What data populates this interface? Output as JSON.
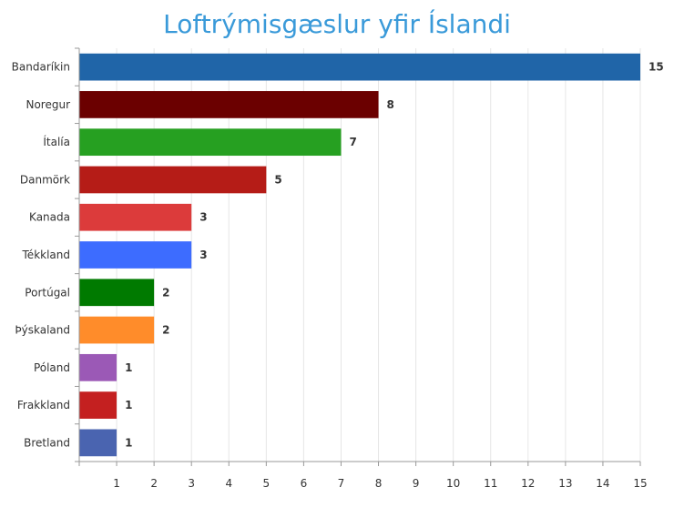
{
  "chart_data": {
    "type": "bar",
    "orientation": "horizontal",
    "title": "Loftrýmisgæslur yfir Íslandi",
    "xlabel": "",
    "ylabel": "",
    "categories": [
      "Bandaríkin",
      "Noregur",
      "Ítalía",
      "Danmörk",
      "Kanada",
      "Tékkland",
      "Portúgal",
      "Þýskaland",
      "Póland",
      "Frakkland",
      "Bretland"
    ],
    "values": [
      15,
      8,
      7,
      5,
      3,
      3,
      2,
      2,
      1,
      1,
      1
    ],
    "colors": [
      "#2065a8",
      "#6b0000",
      "#26a021",
      "#b51c17",
      "#dc3b3b",
      "#3d6cff",
      "#007a00",
      "#ff8c2a",
      "#9b59b6",
      "#c42020",
      "#4a64b0"
    ],
    "xlim": [
      0,
      15
    ],
    "xticks": [
      1,
      2,
      3,
      4,
      5,
      6,
      7,
      8,
      9,
      10,
      11,
      12,
      13,
      14,
      15
    ],
    "grid": true,
    "legend": "none",
    "data_labels": true
  }
}
